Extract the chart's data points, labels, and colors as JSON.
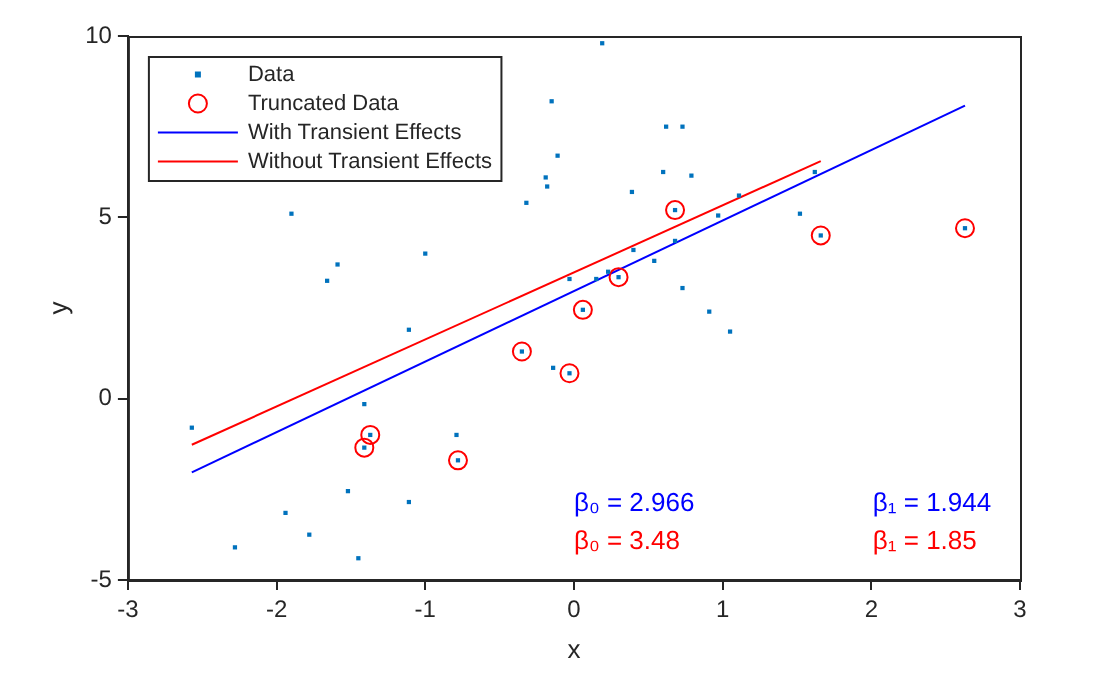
{
  "chart_data": {
    "type": "scatter",
    "xlabel": "x",
    "ylabel": "y",
    "xlim": [
      -3,
      3
    ],
    "xticks": [
      -3,
      -2,
      -1,
      0,
      1,
      2,
      3
    ],
    "ylim": [
      -5,
      10
    ],
    "yticks": [
      -5,
      0,
      5,
      10
    ],
    "grid": false,
    "legend": "top left",
    "series": [
      {
        "name": "Data",
        "marker": "square",
        "color": "#0072bd",
        "x": [
          -2.57,
          -2.28,
          -1.94,
          -1.9,
          -1.78,
          -1.66,
          -1.59,
          -1.52,
          -1.41,
          -1.41,
          -1.37,
          -1.45,
          -1.11,
          -1.11,
          -1.0,
          -0.79,
          -0.78,
          -0.35,
          -0.32,
          -0.19,
          -0.18,
          -0.15,
          -0.11,
          -0.14,
          -0.03,
          0.06,
          0.19,
          -0.03,
          0.15,
          0.23,
          0.3,
          0.4,
          0.39,
          0.54,
          0.6,
          0.62,
          0.73,
          0.68,
          0.68,
          0.79,
          0.73,
          0.91,
          1.05,
          0.97,
          1.11,
          1.52,
          1.62,
          1.66,
          2.63
        ],
        "values": [
          -0.8,
          -4.1,
          -3.15,
          5.1,
          -3.75,
          3.25,
          3.7,
          -2.55,
          -0.15,
          -1.35,
          -1.0,
          -4.4,
          -2.85,
          1.9,
          4.0,
          -1.0,
          -1.7,
          1.3,
          5.4,
          6.1,
          5.85,
          8.2,
          6.7,
          0.85,
          0.7,
          2.45,
          9.8,
          3.3,
          3.3,
          3.5,
          3.35,
          4.1,
          5.7,
          3.8,
          6.25,
          7.5,
          7.5,
          5.2,
          4.35,
          6.15,
          3.05,
          2.4,
          1.85,
          5.05,
          5.6,
          5.1,
          6.25,
          4.5,
          4.7
        ]
      },
      {
        "name": "Truncated Data",
        "marker": "circle",
        "color": "#ff0000",
        "x": [
          -1.41,
          -1.37,
          -0.78,
          -0.35,
          -0.03,
          0.06,
          0.3,
          0.68,
          1.66,
          2.63
        ],
        "values": [
          -1.35,
          -1.0,
          -1.7,
          1.3,
          0.7,
          2.45,
          3.35,
          5.2,
          4.5,
          4.7
        ]
      },
      {
        "name": "With Transient Effects",
        "type": "line",
        "marker": "none",
        "color": "#0000ff",
        "x": [
          -2.57,
          2.63
        ],
        "values": [
          -2.03,
          8.08
        ]
      },
      {
        "name": "Without Transient Effects",
        "type": "line",
        "marker": "none",
        "color": "#ff0000",
        "x": [
          -2.57,
          1.66
        ],
        "values": [
          -1.27,
          6.55
        ]
      }
    ],
    "annotations": [
      "β₀ = 2.966",
      "β₁ = 1.944",
      "β₀ = 3.48",
      "β₁ = 1.85"
    ]
  }
}
